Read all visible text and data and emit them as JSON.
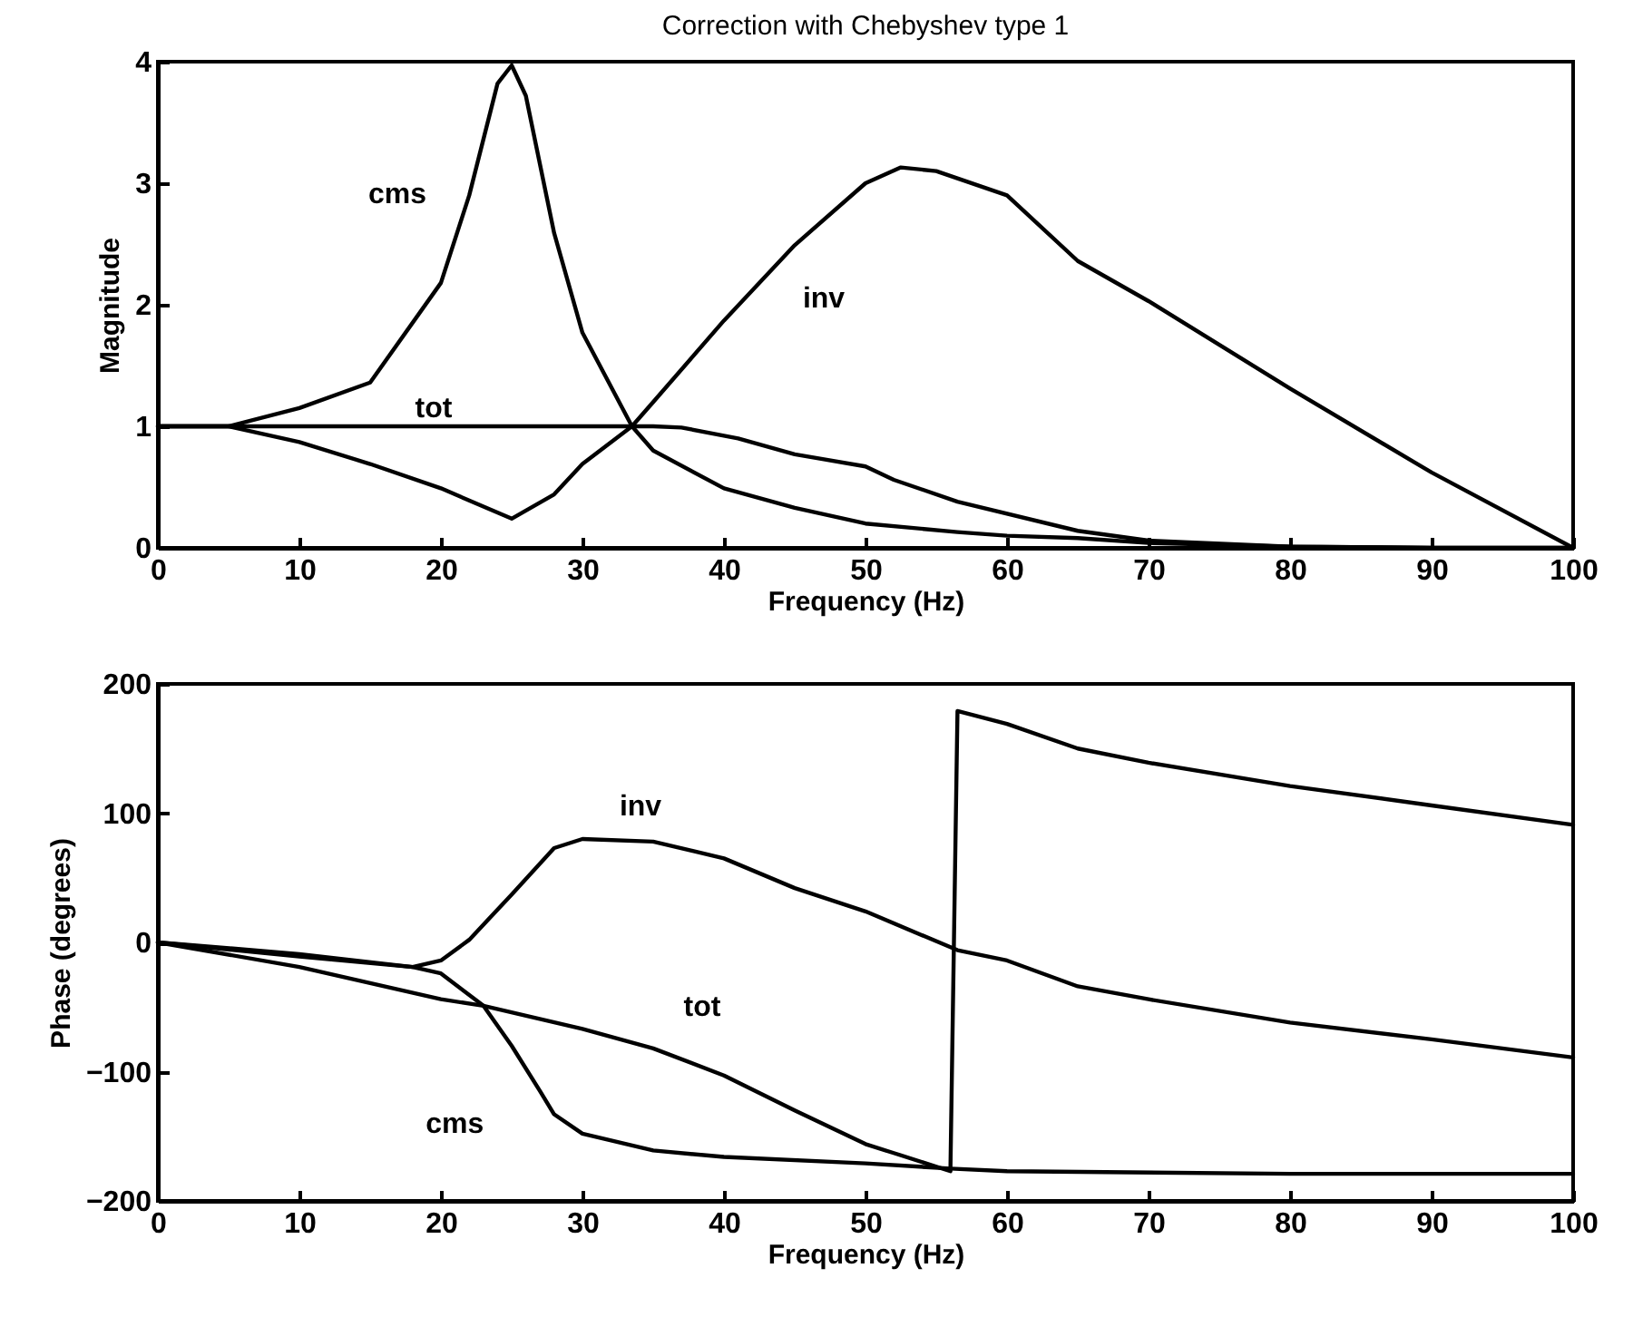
{
  "chart_data": [
    {
      "type": "line",
      "title": "Correction with Chebyshev type 1",
      "xlabel": "Frequency (Hz)",
      "ylabel": "Magnitude",
      "xlim": [
        0,
        100
      ],
      "xticks": [
        0,
        10,
        20,
        30,
        40,
        50,
        60,
        70,
        80,
        90,
        100
      ],
      "ylim": [
        0,
        4
      ],
      "yticks": [
        0,
        1,
        2,
        3,
        4
      ],
      "grid": false,
      "legend": false,
      "marker": "none",
      "line_style": "solid",
      "series": [
        {
          "color": "#000000",
          "x": [
            0,
            5,
            10,
            15,
            20,
            22,
            24,
            25,
            26,
            28,
            30,
            33.5,
            35,
            40,
            45,
            50,
            56.5,
            60,
            65,
            70,
            80,
            90,
            100
          ],
          "values": [
            1,
            1,
            1.15,
            1.36,
            2.18,
            2.9,
            3.82,
            3.97,
            3.72,
            2.59,
            1.77,
            1,
            0.8,
            0.49,
            0.33,
            0.2,
            0.13,
            0.1,
            0.08,
            0.04,
            0.01,
            0,
            0
          ]
        },
        {
          "color": "#000000",
          "x": [
            0,
            5,
            10,
            15,
            20,
            25,
            28,
            30,
            33.5,
            35,
            40,
            45,
            50,
            52.5,
            55,
            60,
            65,
            70,
            80,
            90,
            100
          ],
          "values": [
            1,
            1,
            0.87,
            0.69,
            0.49,
            0.24,
            0.44,
            0.69,
            1,
            1.2,
            1.87,
            2.49,
            3,
            3.13,
            3.1,
            2.9,
            2.36,
            2.03,
            1.31,
            0.62,
            0
          ]
        },
        {
          "color": "#000000",
          "x": [
            0,
            10,
            20,
            30,
            35,
            37,
            41,
            45,
            50,
            52,
            56.5,
            65,
            70,
            80,
            90,
            100
          ],
          "values": [
            1,
            1,
            1,
            1,
            1,
            0.99,
            0.9,
            0.77,
            0.67,
            0.56,
            0.38,
            0.14,
            0.06,
            0.01,
            0,
            0
          ]
        }
      ],
      "annotations": [
        {
          "text": "cms",
          "x": 20,
          "y": 2.18
        },
        {
          "text": "tot",
          "x": 20,
          "y": 1
        },
        {
          "text": "inv",
          "x": 40,
          "y": 1.87
        }
      ]
    },
    {
      "type": "line",
      "xlabel": "Frequency (Hz)",
      "ylabel": "Phase (degrees)",
      "xlim": [
        0,
        100
      ],
      "xticks": [
        0,
        10,
        20,
        30,
        40,
        50,
        60,
        70,
        80,
        90,
        100
      ],
      "ylim": [
        -200,
        200
      ],
      "yticks": [
        -200,
        -100,
        0,
        100,
        200
      ],
      "grid": false,
      "legend": false,
      "marker": "none",
      "line_style": "solid",
      "series": [
        {
          "color": "#000000",
          "x": [
            0,
            10,
            18,
            20,
            23,
            25,
            27,
            28,
            30,
            35,
            40,
            50,
            56,
            60,
            80,
            100
          ],
          "values": [
            0,
            -9,
            -19,
            -24,
            -49,
            -80,
            -115,
            -133,
            -148,
            -161,
            -166,
            -171,
            -175,
            -177,
            -179,
            -179
          ]
        },
        {
          "color": "#000000",
          "x": [
            0,
            10,
            18,
            20,
            22,
            25,
            28,
            30,
            35,
            40,
            45,
            50,
            56.5,
            60,
            65,
            70,
            80,
            90,
            100
          ],
          "values": [
            0,
            -11,
            -19,
            -14,
            2,
            37,
            73,
            80,
            78,
            65,
            42,
            24,
            -6,
            -14,
            -34,
            -44,
            -62,
            -75,
            -89
          ]
        },
        {
          "color": "#000000",
          "x": [
            0,
            10,
            20,
            23,
            30,
            35,
            40,
            45,
            50,
            52,
            56,
            56.5,
            60,
            65,
            70,
            80,
            90,
            100
          ],
          "values": [
            0,
            -19,
            -44,
            -49,
            -67,
            -82,
            -103,
            -130,
            -156,
            -163,
            -177,
            179,
            169,
            150,
            139,
            121,
            106,
            91
          ]
        }
      ],
      "annotations": [
        {
          "text": "inv",
          "x": 30,
          "y": 80
        },
        {
          "text": "tot",
          "x": 40,
          "y": -103
        },
        {
          "text": "cms",
          "x": 27,
          "y": -115
        }
      ]
    }
  ]
}
